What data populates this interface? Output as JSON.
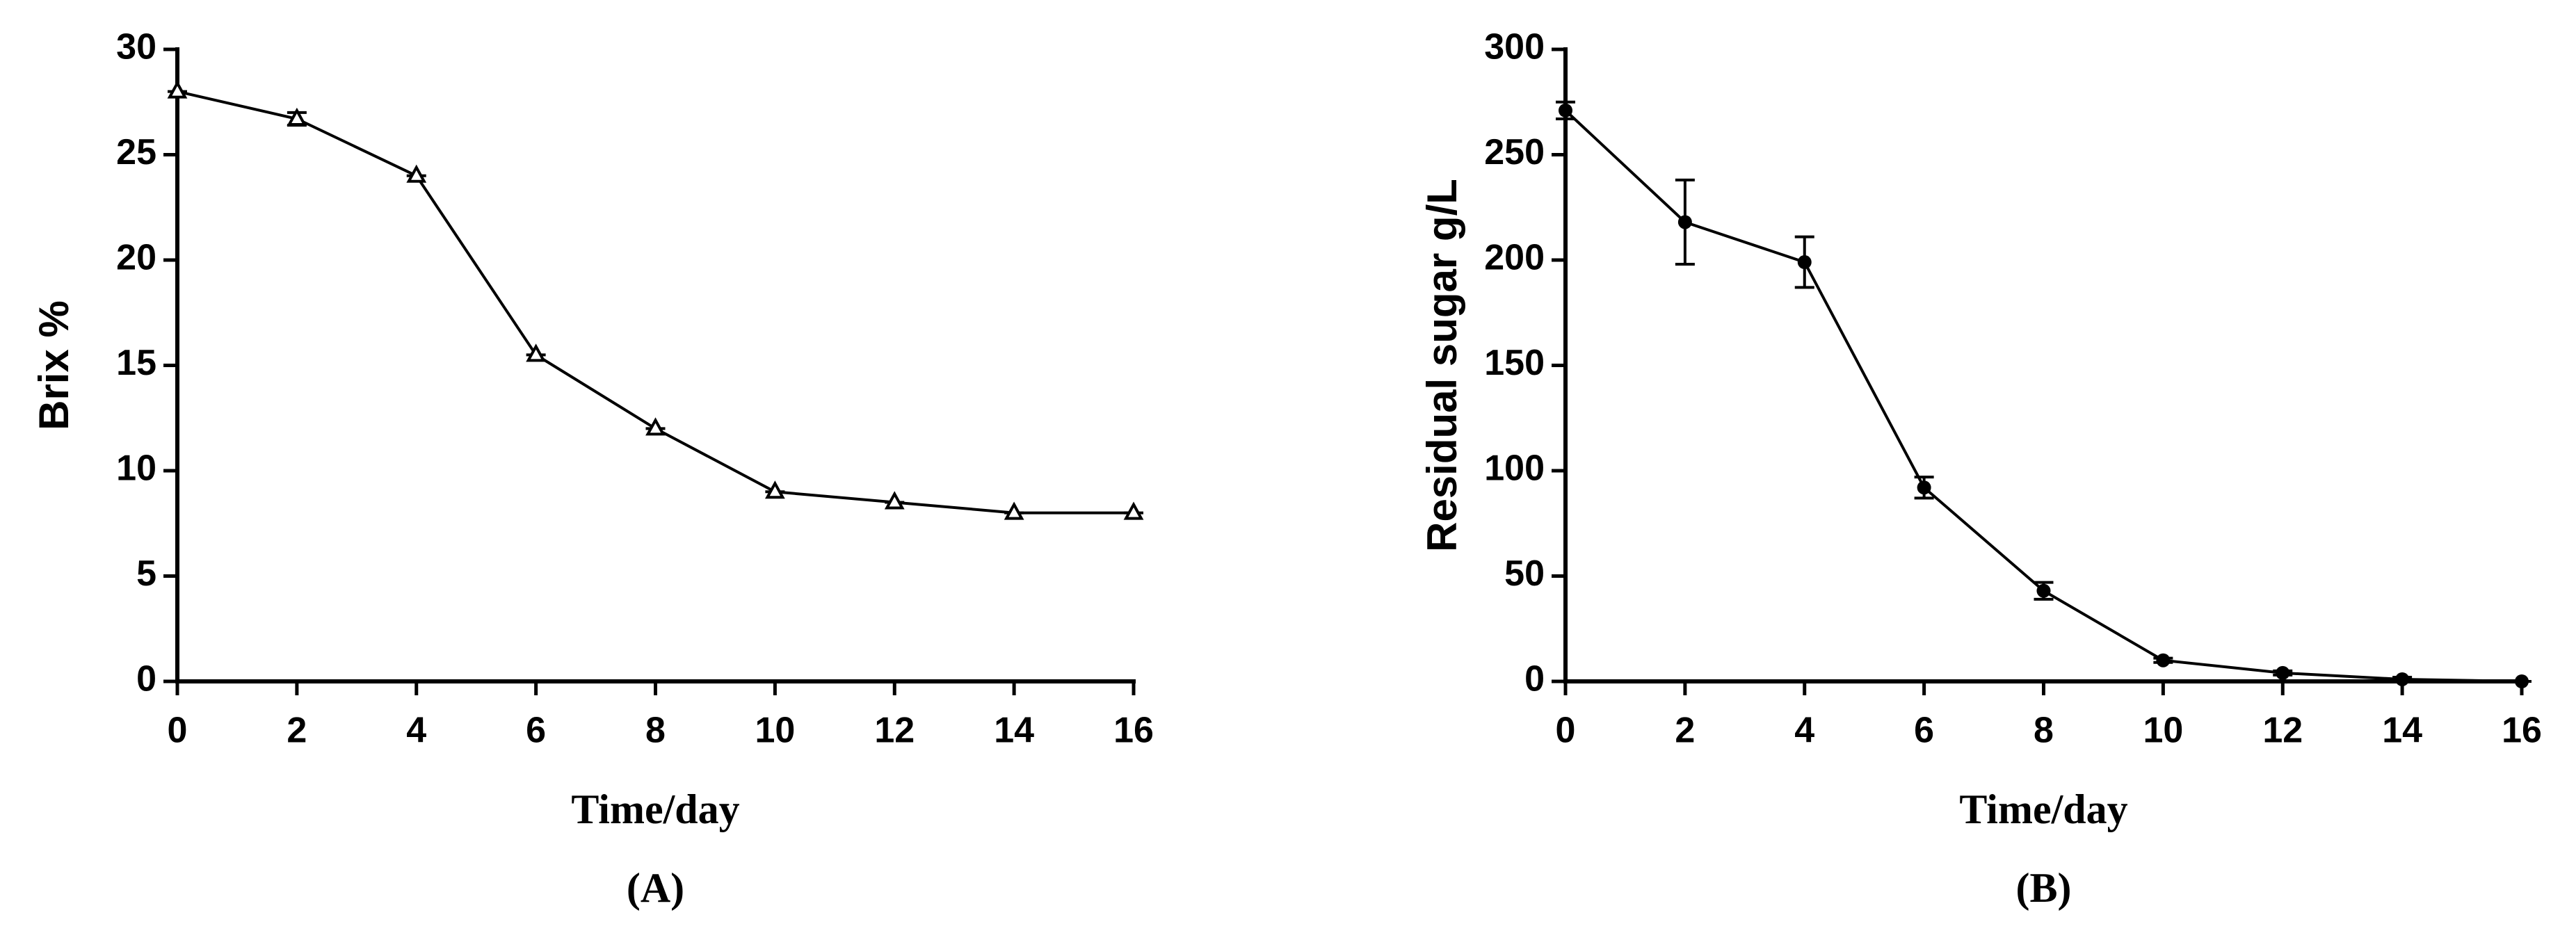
{
  "chart_data": [
    {
      "type": "line",
      "panel_label": "(A)",
      "x_label": "Time/day",
      "y_label": "Brix %",
      "x": [
        0,
        2,
        4,
        6,
        8,
        10,
        12,
        14,
        16
      ],
      "series": [
        {
          "color": "#000000",
          "marker": "triangle",
          "values": [
            28,
            26.7,
            24,
            15.5,
            12,
            9,
            8.5,
            8,
            8
          ],
          "errors": [
            0,
            0.3,
            0,
            0,
            0,
            0,
            0,
            0,
            0
          ]
        }
      ],
      "xlim": [
        0,
        16
      ],
      "xticks": [
        0,
        2,
        4,
        6,
        8,
        10,
        12,
        14,
        16
      ],
      "ylim": [
        0,
        30
      ],
      "yticks": [
        0,
        5,
        10,
        15,
        20,
        25,
        30
      ],
      "grid": false
    },
    {
      "type": "line",
      "panel_label": "(B)",
      "x_label": "Time/day",
      "y_label": "Residual sugar g/L",
      "x": [
        0,
        2,
        4,
        6,
        8,
        10,
        12,
        14,
        16
      ],
      "series": [
        {
          "color": "#000000",
          "marker": "circle",
          "values": [
            271,
            218,
            199,
            92,
            43,
            10,
            4,
            1,
            0
          ],
          "errors": [
            4,
            20,
            12,
            5,
            4,
            1,
            1,
            1,
            0
          ]
        }
      ],
      "xlim": [
        0,
        16
      ],
      "xticks": [
        0,
        2,
        4,
        6,
        8,
        10,
        12,
        14,
        16
      ],
      "ylim": [
        0,
        300
      ],
      "yticks": [
        0,
        50,
        100,
        150,
        200,
        250,
        300
      ],
      "grid": false
    }
  ]
}
